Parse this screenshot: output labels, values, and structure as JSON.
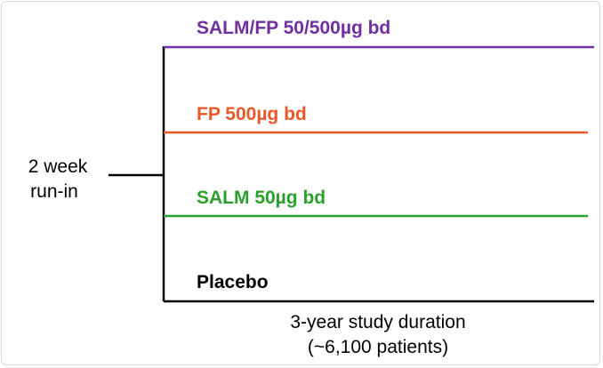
{
  "colors": {
    "salm_fp": "#7030a0",
    "fp": "#e8582a",
    "salm": "#2ca02c",
    "placebo": "#000000",
    "axis": "#000000"
  },
  "arms": [
    {
      "label": "SALM/FP 50/500µg bd",
      "color": "#7030a0"
    },
    {
      "label": "FP 500µg bd",
      "color": "#e8582a"
    },
    {
      "label": "SALM 50µg bd",
      "color": "#2ca02c"
    },
    {
      "label": "Placebo",
      "color": "#000000"
    }
  ],
  "run_in": {
    "line1": "2 week",
    "line2": "run-in"
  },
  "duration": {
    "line1": "3-year study duration",
    "line2": "(~6,100 patients)"
  }
}
